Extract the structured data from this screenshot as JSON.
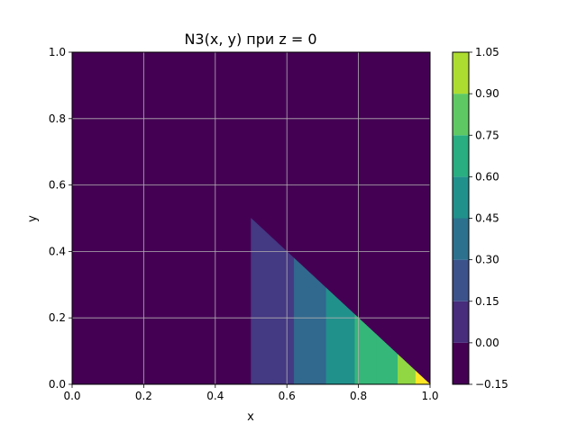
{
  "chart_data": {
    "type": "contourf",
    "title": "N3(x, y) при z = 0",
    "xlabel": "x",
    "ylabel": "y",
    "xlim": [
      0.0,
      1.0
    ],
    "ylim": [
      0.0,
      1.0
    ],
    "xticks": [
      "0.0",
      "0.2",
      "0.4",
      "0.6",
      "0.8",
      "1.0"
    ],
    "yticks": [
      "0.0",
      "0.2",
      "0.4",
      "0.6",
      "0.8",
      "1.0"
    ],
    "grid": true,
    "background_level_color": "#440154",
    "region": "triangle with vertices (0.5, 0.5), (0.5, 0.0), (1.0, 0.0)",
    "bands": [
      {
        "x_from": 0.5,
        "x_to": 0.62,
        "range": [
          0.0,
          0.15
        ],
        "color": "#443983"
      },
      {
        "x_from": 0.62,
        "x_to": 0.71,
        "range": [
          0.15,
          0.3
        ],
        "color": "#31688e"
      },
      {
        "x_from": 0.71,
        "x_to": 0.79,
        "range": [
          0.3,
          0.45
        ],
        "color": "#21918c"
      },
      {
        "x_from": 0.79,
        "x_to": 0.85,
        "range": [
          0.45,
          0.6
        ],
        "color": "#35b779"
      },
      {
        "x_from": 0.85,
        "x_to": 0.91,
        "range": [
          0.6,
          0.75
        ],
        "color": "#35b779"
      },
      {
        "x_from": 0.91,
        "x_to": 0.96,
        "range": [
          0.75,
          0.9
        ],
        "color": "#90d743"
      },
      {
        "x_from": 0.96,
        "x_to": 1.0,
        "range": [
          0.9,
          1.05
        ],
        "color": "#fde725"
      }
    ],
    "colorbar": {
      "tick_labels": [
        "1.05",
        "0.90",
        "0.75",
        "0.60",
        "0.45",
        "0.30",
        "0.15",
        "0.00",
        "−0.15"
      ],
      "levels": [
        -0.15,
        0.0,
        0.15,
        0.3,
        0.45,
        0.6,
        0.75,
        0.9,
        1.05
      ],
      "colors": [
        "#440154",
        "#472d7b",
        "#3b528b",
        "#2c728e",
        "#21918c",
        "#28ae80",
        "#5ec962",
        "#addc30",
        "#d8e219"
      ]
    }
  }
}
